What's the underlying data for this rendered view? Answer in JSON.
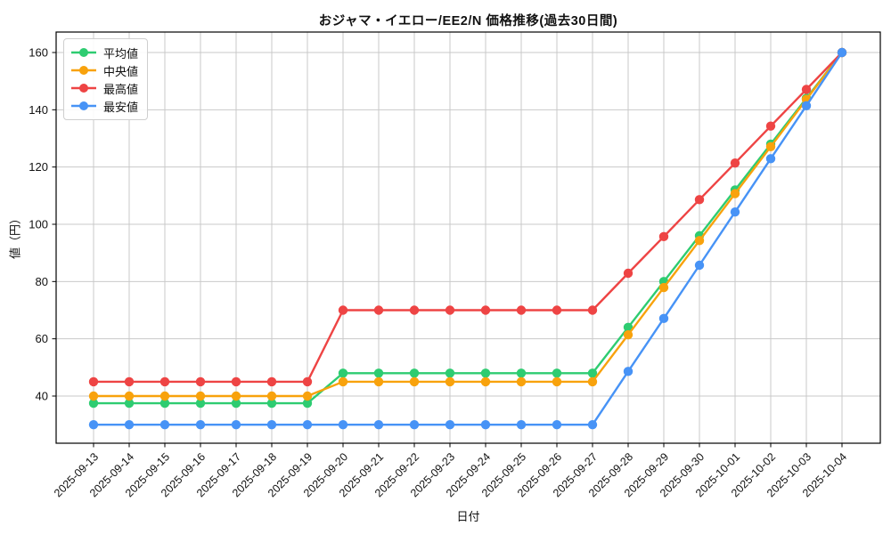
{
  "title": "おジャマ・イエロー/EE2/N 価格推移(過去30日間)",
  "chart_data": {
    "type": "line",
    "title": "おジャマ・イエロー/EE2/N 価格推移(過去30日間)",
    "xlabel": "日付",
    "ylabel": "値（円）",
    "categories": [
      "2025-09-13",
      "2025-09-14",
      "2025-09-15",
      "2025-09-16",
      "2025-09-17",
      "2025-09-18",
      "2025-09-19",
      "2025-09-20",
      "2025-09-21",
      "2025-09-22",
      "2025-09-23",
      "2025-09-24",
      "2025-09-25",
      "2025-09-26",
      "2025-09-27",
      "2025-09-28",
      "2025-09-29",
      "2025-09-30",
      "2025-10-01",
      "2025-10-02",
      "2025-10-03",
      "2025-10-04"
    ],
    "series": [
      {
        "name": "平均値",
        "semantic": "average",
        "color": "#2ecc71",
        "values": [
          37.5,
          37.5,
          37.5,
          37.5,
          37.5,
          37.5,
          37.5,
          48,
          48,
          48,
          48,
          48,
          48,
          48,
          48,
          64,
          80,
          96,
          112,
          128,
          144,
          160
        ]
      },
      {
        "name": "中央値",
        "semantic": "median",
        "color": "#f8a20c",
        "values": [
          40,
          40,
          40,
          40,
          40,
          40,
          40,
          45,
          45,
          45,
          45,
          45,
          45,
          45,
          45,
          61.4,
          77.9,
          94.3,
          110.7,
          127.1,
          143.6,
          160
        ]
      },
      {
        "name": "最高値",
        "semantic": "highest",
        "color": "#ee4444",
        "values": [
          45,
          45,
          45,
          45,
          45,
          45,
          45,
          70,
          70,
          70,
          70,
          70,
          70,
          70,
          70,
          82.9,
          95.7,
          108.6,
          121.4,
          134.3,
          147.1,
          160
        ]
      },
      {
        "name": "最安値",
        "semantic": "lowest",
        "color": "#4793f6",
        "values": [
          30,
          30,
          30,
          30,
          30,
          30,
          30,
          30,
          30,
          30,
          30,
          30,
          30,
          30,
          30,
          48.6,
          67.1,
          85.7,
          104.3,
          122.9,
          141.4,
          160
        ]
      }
    ],
    "yticks": [
      40,
      60,
      80,
      100,
      120,
      140,
      160
    ],
    "ylim": [
      23.5,
      167.2
    ],
    "grid": true,
    "legend_position": "upper left"
  },
  "colors": {
    "grid": "#c9c9c9",
    "axis": "#000000",
    "tick_text": "#111111",
    "background": "#ffffff"
  }
}
